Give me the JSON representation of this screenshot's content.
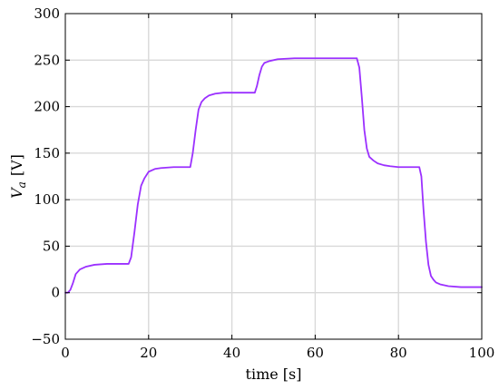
{
  "chart_data": {
    "type": "line",
    "title": "",
    "xlabel": "time [s]",
    "ylabel_main": "V",
    "ylabel_sub": "a",
    "ylabel_unit": "[V]",
    "xlim": [
      0,
      100
    ],
    "ylim": [
      -50,
      300
    ],
    "xticks": [
      0,
      20,
      40,
      60,
      80,
      100
    ],
    "yticks": [
      -50,
      0,
      50,
      100,
      150,
      200,
      250,
      300
    ],
    "xtick_labels": [
      "0",
      "20",
      "40",
      "60",
      "80",
      "100"
    ],
    "ytick_labels": [
      "−50",
      "0",
      "50",
      "100",
      "150",
      "200",
      "250",
      "300"
    ],
    "grid": true,
    "series": [
      {
        "color": "#9b30ff",
        "x": [
          0,
          0.6,
          1.2,
          1.8,
          2.5,
          3.5,
          5,
          7,
          10,
          13,
          15.2,
          15.8,
          16.6,
          17.4,
          18.2,
          19,
          20,
          21.5,
          23,
          26,
          30,
          30.6,
          31.3,
          32,
          32.7,
          33.5,
          34.5,
          36,
          38,
          42,
          45.5,
          46,
          46.6,
          47.2,
          47.8,
          49,
          51,
          55,
          60,
          65,
          70,
          70.6,
          71.2,
          71.8,
          72.4,
          73,
          74,
          75,
          76.5,
          78,
          80,
          82,
          85,
          85.5,
          86,
          86.6,
          87.2,
          87.8,
          88.4,
          89,
          90,
          92,
          95,
          100
        ],
        "y": [
          0,
          0,
          3,
          10,
          20,
          25,
          28,
          30,
          31,
          31,
          31,
          38,
          65,
          95,
          115,
          123,
          130,
          133,
          134,
          135,
          135,
          150,
          175,
          197,
          205,
          209,
          212,
          214,
          215,
          215,
          215,
          222,
          234,
          243,
          247,
          249,
          251,
          252,
          252,
          252,
          252,
          242,
          210,
          175,
          155,
          146,
          142,
          139,
          137,
          136,
          135,
          135,
          135,
          125,
          90,
          55,
          30,
          18,
          14,
          11,
          9,
          7,
          6,
          6
        ]
      }
    ]
  }
}
